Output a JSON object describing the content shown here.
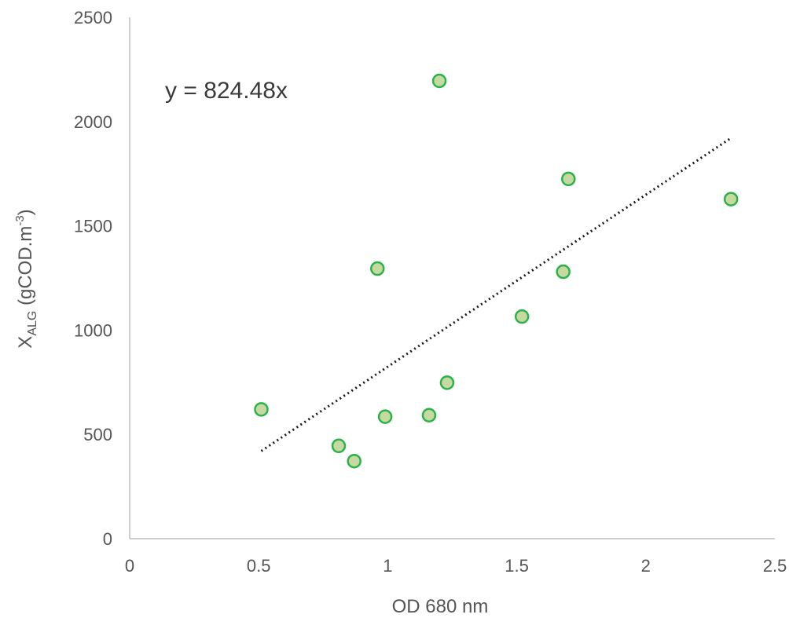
{
  "chart_data": {
    "type": "scatter",
    "xlabel": "OD 680 nm",
    "ylabel": {
      "main": "X",
      "subscript": "ALG",
      "unit_prefix": " (gCOD.m",
      "superscript": "-3",
      "unit_suffix": ")"
    },
    "xlim": [
      0,
      2.5
    ],
    "ylim": [
      0,
      2500
    ],
    "x_ticks": [
      "0",
      "0.5",
      "1",
      "1.5",
      "2",
      "2.5"
    ],
    "y_ticks": [
      "0",
      "500",
      "1000",
      "1500",
      "2000",
      "2500"
    ],
    "grid": false,
    "legend": "none",
    "points": [
      {
        "x": 0.51,
        "y": 620
      },
      {
        "x": 0.81,
        "y": 445
      },
      {
        "x": 0.87,
        "y": 372
      },
      {
        "x": 0.96,
        "y": 1295
      },
      {
        "x": 0.99,
        "y": 585
      },
      {
        "x": 1.16,
        "y": 592
      },
      {
        "x": 1.2,
        "y": 2195
      },
      {
        "x": 1.23,
        "y": 748
      },
      {
        "x": 1.52,
        "y": 1065
      },
      {
        "x": 1.68,
        "y": 1280
      },
      {
        "x": 1.7,
        "y": 1725
      },
      {
        "x": 2.33,
        "y": 1628
      }
    ],
    "trendline": {
      "label": "y = 824.48x",
      "slope": 824.48,
      "x_range": [
        0.51,
        2.33
      ],
      "style": "dotted"
    },
    "colors": {
      "marker_fill": "#c6d9a0",
      "marker_stroke": "#2bb34a",
      "trendline": "#1a1a1a",
      "axis": "#bfbfbf",
      "text": "#555555"
    }
  }
}
